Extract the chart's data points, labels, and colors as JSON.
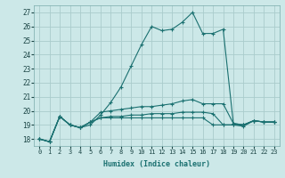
{
  "title": "",
  "xlabel": "Humidex (Indice chaleur)",
  "ylabel": "",
  "background_color": "#cce8e8",
  "grid_color": "#aacccc",
  "line_color": "#1a7070",
  "xlim": [
    -0.5,
    23.5
  ],
  "ylim": [
    17.5,
    27.5
  ],
  "xticks": [
    0,
    1,
    2,
    3,
    4,
    5,
    6,
    7,
    8,
    9,
    10,
    11,
    12,
    13,
    14,
    15,
    16,
    17,
    18,
    19,
    20,
    21,
    22,
    23
  ],
  "yticks": [
    18,
    19,
    20,
    21,
    22,
    23,
    24,
    25,
    26,
    27
  ],
  "curves": [
    [
      18.0,
      17.8,
      19.6,
      19.0,
      18.8,
      19.0,
      19.7,
      20.6,
      21.7,
      23.2,
      24.7,
      26.0,
      25.7,
      25.8,
      26.3,
      27.0,
      25.5,
      25.5,
      25.8,
      19.1,
      19.0,
      19.3,
      19.2,
      19.2
    ],
    [
      18.0,
      17.8,
      19.6,
      19.0,
      18.8,
      19.2,
      19.9,
      20.0,
      20.1,
      20.2,
      20.3,
      20.3,
      20.4,
      20.5,
      20.7,
      20.8,
      20.5,
      20.5,
      20.5,
      19.1,
      19.0,
      19.3,
      19.2,
      19.2
    ],
    [
      18.0,
      17.8,
      19.6,
      19.0,
      18.8,
      19.2,
      19.5,
      19.6,
      19.6,
      19.7,
      19.7,
      19.8,
      19.8,
      19.8,
      19.9,
      19.9,
      19.9,
      19.8,
      19.0,
      19.0,
      19.0,
      19.3,
      19.2,
      19.2
    ],
    [
      18.0,
      17.8,
      19.6,
      19.0,
      18.8,
      19.2,
      19.5,
      19.5,
      19.5,
      19.5,
      19.5,
      19.5,
      19.5,
      19.5,
      19.5,
      19.5,
      19.5,
      19.0,
      19.0,
      19.0,
      18.9,
      19.3,
      19.2,
      19.2
    ]
  ]
}
